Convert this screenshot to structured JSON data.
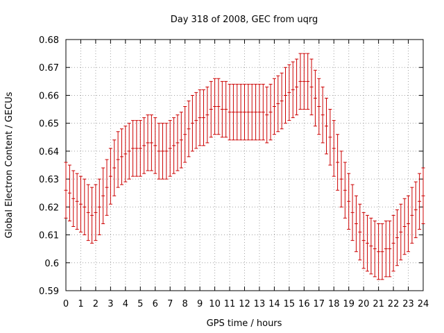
{
  "chart_data": {
    "type": "errorbar",
    "title": "Day 318 of 2008, GEC from uqrg",
    "xlabel": "GPS time / hours",
    "ylabel": "Global Electron Content / GECUs",
    "xlim": [
      0,
      24
    ],
    "ylim": [
      0.59,
      0.68
    ],
    "xticks": [
      "0",
      "1",
      "2",
      "3",
      "4",
      "5",
      "6",
      "7",
      "8",
      "9",
      "10",
      "11",
      "12",
      "13",
      "14",
      "15",
      "16",
      "17",
      "18",
      "19",
      "20",
      "21",
      "22",
      "23",
      "24"
    ],
    "yticks": [
      "0.59",
      "0.6",
      "0.61",
      "0.62",
      "0.63",
      "0.64",
      "0.65",
      "0.66",
      "0.67",
      "0.68"
    ],
    "grid": true,
    "error": 0.01,
    "series_color": "#cc0000",
    "x": [
      0,
      0.25,
      0.5,
      0.75,
      1,
      1.25,
      1.5,
      1.75,
      2,
      2.25,
      2.5,
      2.75,
      3,
      3.25,
      3.5,
      3.75,
      4,
      4.25,
      4.5,
      4.75,
      5,
      5.25,
      5.5,
      5.75,
      6,
      6.25,
      6.5,
      6.75,
      7,
      7.25,
      7.5,
      7.75,
      8,
      8.25,
      8.5,
      8.75,
      9,
      9.25,
      9.5,
      9.75,
      10,
      10.25,
      10.5,
      10.75,
      11,
      11.25,
      11.5,
      11.75,
      12,
      12.25,
      12.5,
      12.75,
      13,
      13.25,
      13.5,
      13.75,
      14,
      14.25,
      14.5,
      14.75,
      15,
      15.25,
      15.5,
      15.75,
      16,
      16.25,
      16.5,
      16.75,
      17,
      17.25,
      17.5,
      17.75,
      18,
      18.25,
      18.5,
      18.75,
      19,
      19.25,
      19.5,
      19.75,
      20,
      20.25,
      20.5,
      20.75,
      21,
      21.25,
      21.5,
      21.75,
      22,
      22.25,
      22.5,
      22.75,
      23,
      23.25,
      23.5,
      23.75,
      24
    ],
    "y": [
      0.626,
      0.625,
      0.623,
      0.622,
      0.621,
      0.62,
      0.618,
      0.617,
      0.618,
      0.62,
      0.624,
      0.627,
      0.631,
      0.634,
      0.637,
      0.638,
      0.639,
      0.64,
      0.641,
      0.641,
      0.641,
      0.642,
      0.643,
      0.643,
      0.642,
      0.64,
      0.64,
      0.64,
      0.641,
      0.642,
      0.643,
      0.644,
      0.646,
      0.648,
      0.65,
      0.651,
      0.652,
      0.652,
      0.653,
      0.655,
      0.656,
      0.656,
      0.655,
      0.655,
      0.654,
      0.654,
      0.654,
      0.654,
      0.654,
      0.654,
      0.654,
      0.654,
      0.654,
      0.654,
      0.653,
      0.654,
      0.656,
      0.657,
      0.658,
      0.66,
      0.661,
      0.662,
      0.663,
      0.665,
      0.665,
      0.665,
      0.663,
      0.659,
      0.656,
      0.653,
      0.649,
      0.645,
      0.641,
      0.636,
      0.63,
      0.626,
      0.622,
      0.618,
      0.614,
      0.611,
      0.608,
      0.607,
      0.606,
      0.605,
      0.604,
      0.604,
      0.605,
      0.605,
      0.607,
      0.609,
      0.611,
      0.613,
      0.614,
      0.617,
      0.619,
      0.622,
      0.624
    ]
  }
}
